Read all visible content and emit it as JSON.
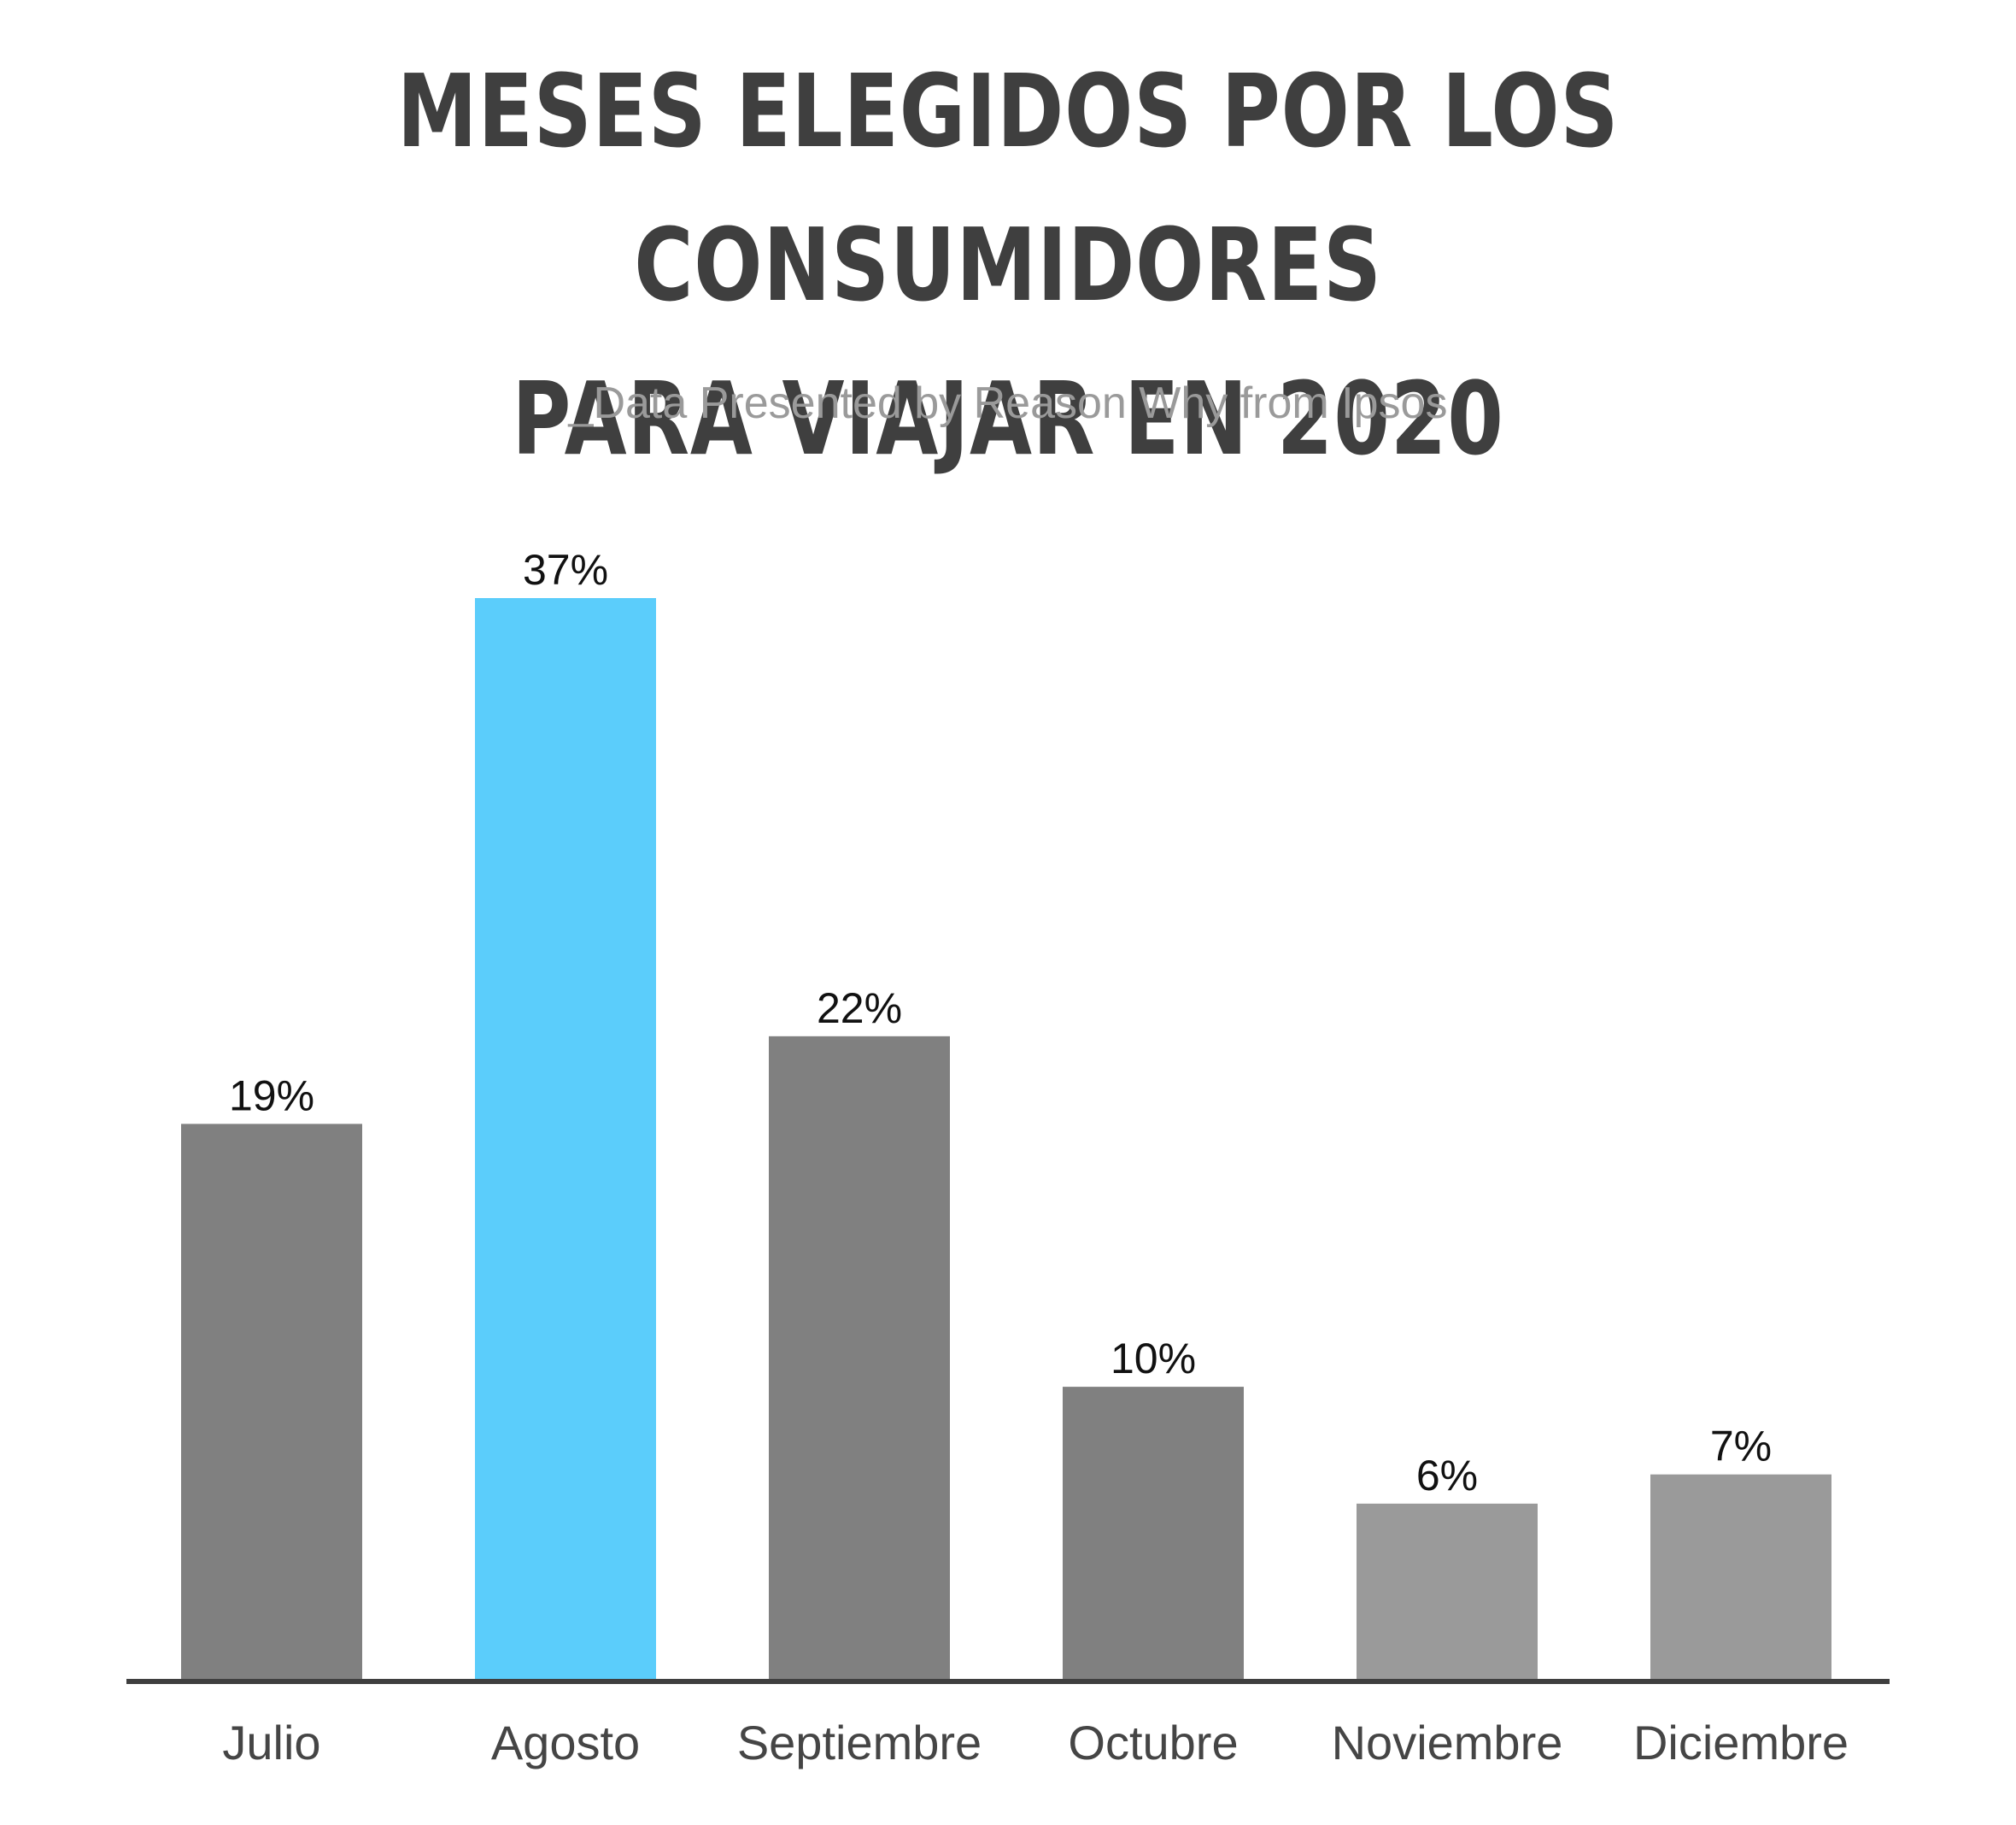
{
  "header": {
    "title_line1": "MESES ELEGIDOS POR LOS CONSUMIDORES",
    "title_line2": "PARA VIAJAR EN 2020",
    "subtitle": "_Data Presented by Reason Why from Ipsos"
  },
  "chart_data": {
    "type": "bar",
    "title": "MESES ELEGIDOS POR LOS CONSUMIDORES PARA VIAJAR EN 2020",
    "subtitle": "_Data Presented by Reason Why from Ipsos",
    "categories": [
      "Julio",
      "Agosto",
      "Septiembre",
      "Octubre",
      "Noviembre",
      "Diciembre"
    ],
    "values": [
      19,
      37,
      22,
      10,
      6,
      7
    ],
    "value_labels": [
      "19%",
      "37%",
      "22%",
      "10%",
      "6%",
      "7%"
    ],
    "colors": [
      "#808080",
      "#5bcdfb",
      "#808080",
      "#808080",
      "#9a9a9a",
      "#9a9a9a"
    ],
    "axis_color": "#3f3f3f",
    "ylim": [
      0,
      37
    ],
    "grid": false,
    "legend": "none"
  }
}
